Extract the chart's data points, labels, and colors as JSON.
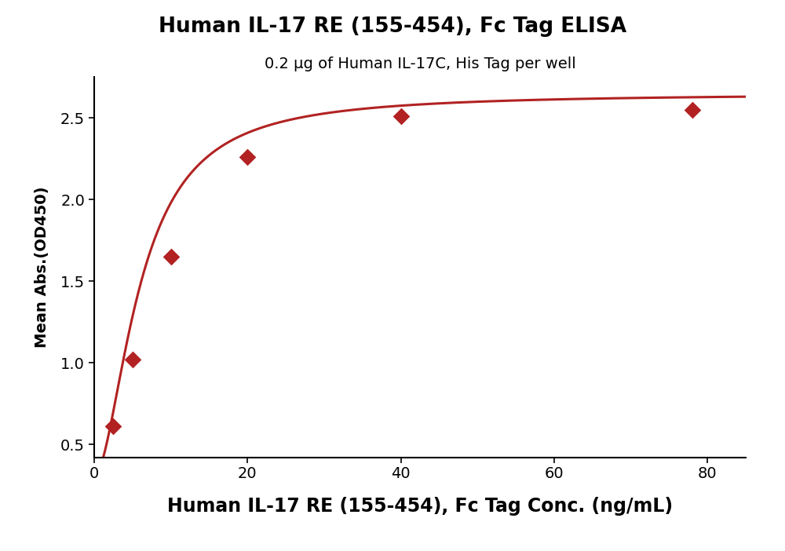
{
  "title": "Human IL-17 RE (155-454), Fc Tag ELISA",
  "subtitle": "0.2 μg of Human IL-17C, His Tag per well",
  "xlabel": "Human IL-17 RE (155-454), Fc Tag Conc. (ng/mL)",
  "ylabel": "Mean Abs.(OD450)",
  "data_x": [
    2.5,
    5,
    10,
    20,
    40,
    78
  ],
  "data_y": [
    0.61,
    1.02,
    1.65,
    2.26,
    2.51,
    2.55
  ],
  "line_color": "#b22222",
  "marker_color": "#b22222",
  "xlim": [
    0,
    85
  ],
  "ylim": [
    0.42,
    2.75
  ],
  "xticks": [
    0,
    20,
    40,
    60,
    80
  ],
  "yticks": [
    0.5,
    1.0,
    1.5,
    2.0,
    2.5
  ],
  "title_fontsize": 19,
  "subtitle_fontsize": 14,
  "xlabel_fontsize": 17,
  "ylabel_fontsize": 14,
  "tick_fontsize": 14,
  "background_color": "#ffffff",
  "marker_size": 9,
  "line_width": 2.2
}
